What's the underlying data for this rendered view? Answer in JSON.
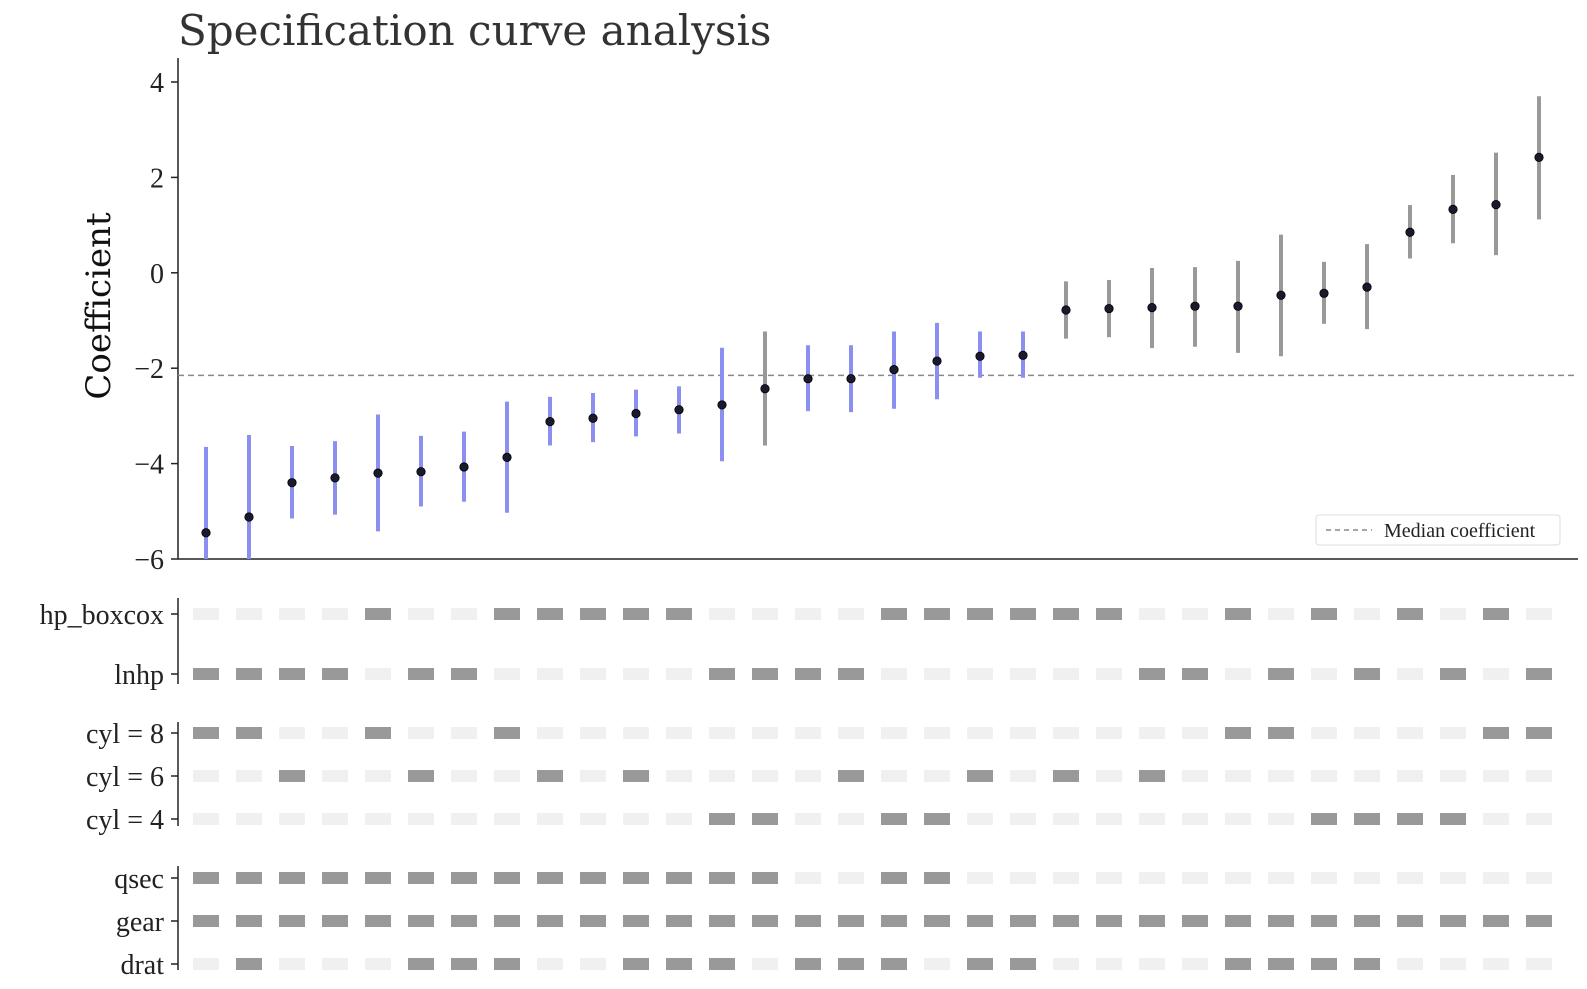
{
  "chart_data": {
    "type": "scatter",
    "title": "Specification curve analysis",
    "ylabel": "Coefficient",
    "xlabel": "",
    "ylim": [
      -6,
      4.5
    ],
    "yticks": [
      4,
      2,
      0,
      -2,
      -4,
      -6
    ],
    "ytick_labels": [
      "4",
      "2",
      "0",
      "−2",
      "−4",
      "−6"
    ],
    "median_coefficient": -2.15,
    "legend": {
      "label": "Median coefficient",
      "placement": "lower-right"
    },
    "colors": {
      "significant": "#8b8ff0",
      "not_significant": "#999999",
      "point": "#1a1a2e",
      "median_line": "#888888",
      "cell_on": "#999999",
      "cell_off": "#f0f0f0",
      "axis": "#222222"
    },
    "specifications": [
      {
        "coef": -5.45,
        "low": -6.5,
        "high": -3.65,
        "significant": true
      },
      {
        "coef": -5.12,
        "low": -6.5,
        "high": -3.4,
        "significant": true
      },
      {
        "coef": -4.4,
        "low": -5.15,
        "high": -3.63,
        "significant": true
      },
      {
        "coef": -4.3,
        "low": -5.07,
        "high": -3.53,
        "significant": true
      },
      {
        "coef": -4.2,
        "low": -5.42,
        "high": -2.97,
        "significant": true
      },
      {
        "coef": -4.17,
        "low": -4.9,
        "high": -3.42,
        "significant": true
      },
      {
        "coef": -4.07,
        "low": -4.8,
        "high": -3.33,
        "significant": true
      },
      {
        "coef": -3.87,
        "low": -5.03,
        "high": -2.7,
        "significant": true
      },
      {
        "coef": -3.12,
        "low": -3.62,
        "high": -2.6,
        "significant": true
      },
      {
        "coef": -3.05,
        "low": -3.55,
        "high": -2.52,
        "significant": true
      },
      {
        "coef": -2.95,
        "low": -3.43,
        "high": -2.45,
        "significant": true
      },
      {
        "coef": -2.87,
        "low": -3.37,
        "high": -2.38,
        "significant": true
      },
      {
        "coef": -2.77,
        "low": -3.95,
        "high": -1.57,
        "significant": true
      },
      {
        "coef": -2.43,
        "low": -3.62,
        "high": -1.23,
        "significant": false
      },
      {
        "coef": -2.22,
        "low": -2.9,
        "high": -1.52,
        "significant": true
      },
      {
        "coef": -2.22,
        "low": -2.92,
        "high": -1.52,
        "significant": true
      },
      {
        "coef": -2.03,
        "low": -2.85,
        "high": -1.23,
        "significant": true
      },
      {
        "coef": -1.85,
        "low": -2.65,
        "high": -1.05,
        "significant": true
      },
      {
        "coef": -1.75,
        "low": -2.2,
        "high": -1.23,
        "significant": true
      },
      {
        "coef": -1.73,
        "low": -2.2,
        "high": -1.23,
        "significant": true
      },
      {
        "coef": -0.78,
        "low": -1.38,
        "high": -0.18,
        "significant": false
      },
      {
        "coef": -0.75,
        "low": -1.35,
        "high": -0.15,
        "significant": false
      },
      {
        "coef": -0.73,
        "low": -1.58,
        "high": 0.1,
        "significant": false
      },
      {
        "coef": -0.7,
        "low": -1.55,
        "high": 0.12,
        "significant": false
      },
      {
        "coef": -0.7,
        "low": -1.68,
        "high": 0.25,
        "significant": false
      },
      {
        "coef": -0.47,
        "low": -1.75,
        "high": 0.8,
        "significant": false
      },
      {
        "coef": -0.43,
        "low": -1.07,
        "high": 0.23,
        "significant": false
      },
      {
        "coef": -0.3,
        "low": -1.18,
        "high": 0.6,
        "significant": false
      },
      {
        "coef": 0.85,
        "low": 0.3,
        "high": 1.42,
        "significant": false
      },
      {
        "coef": 1.33,
        "low": 0.62,
        "high": 2.05,
        "significant": false
      },
      {
        "coef": 1.43,
        "low": 0.37,
        "high": 2.52,
        "significant": false
      },
      {
        "coef": 2.42,
        "low": 1.12,
        "high": 3.7,
        "significant": false
      }
    ],
    "groups": [
      {
        "rows": [
          {
            "label": "hp_boxcox",
            "on": [
              0,
              0,
              0,
              0,
              1,
              0,
              0,
              1,
              1,
              1,
              1,
              1,
              0,
              0,
              0,
              0,
              1,
              1,
              1,
              1,
              1,
              1,
              0,
              0,
              1,
              0,
              1,
              0,
              1,
              0,
              1,
              0
            ]
          },
          {
            "label": "lnhp",
            "on": [
              1,
              1,
              1,
              1,
              0,
              1,
              1,
              0,
              0,
              0,
              0,
              0,
              1,
              1,
              1,
              1,
              0,
              0,
              0,
              0,
              0,
              0,
              1,
              1,
              0,
              1,
              0,
              1,
              0,
              1,
              0,
              1
            ]
          }
        ]
      },
      {
        "rows": [
          {
            "label": "cyl = 8",
            "on": [
              1,
              1,
              0,
              0,
              1,
              0,
              0,
              1,
              0,
              0,
              0,
              0,
              0,
              0,
              0,
              0,
              0,
              0,
              0,
              0,
              0,
              0,
              0,
              0,
              1,
              1,
              0,
              0,
              0,
              0,
              1,
              1
            ]
          },
          {
            "label": "cyl = 6",
            "on": [
              0,
              0,
              1,
              0,
              0,
              1,
              0,
              0,
              1,
              0,
              1,
              0,
              0,
              0,
              0,
              1,
              0,
              0,
              1,
              0,
              1,
              0,
              1,
              0,
              0,
              0,
              0,
              0,
              0,
              0,
              0,
              0
            ]
          },
          {
            "label": "cyl = 4",
            "on": [
              0,
              0,
              0,
              0,
              0,
              0,
              0,
              0,
              0,
              0,
              0,
              0,
              1,
              1,
              0,
              0,
              1,
              1,
              0,
              0,
              0,
              0,
              0,
              0,
              0,
              0,
              1,
              1,
              1,
              1,
              0,
              0
            ]
          }
        ]
      },
      {
        "rows": [
          {
            "label": "qsec",
            "on": [
              1,
              1,
              1,
              1,
              1,
              1,
              1,
              1,
              1,
              1,
              1,
              1,
              1,
              1,
              0,
              0,
              1,
              1,
              0,
              0,
              0,
              0,
              0,
              0,
              0,
              0,
              0,
              0,
              0,
              0,
              0,
              0
            ]
          },
          {
            "label": "gear",
            "on": [
              1,
              1,
              1,
              1,
              1,
              1,
              1,
              1,
              1,
              1,
              1,
              1,
              1,
              1,
              1,
              1,
              1,
              1,
              1,
              1,
              1,
              1,
              1,
              1,
              1,
              1,
              1,
              1,
              1,
              1,
              1,
              1
            ]
          },
          {
            "label": "drat",
            "on": [
              0,
              1,
              0,
              0,
              0,
              1,
              1,
              1,
              0,
              0,
              1,
              1,
              1,
              0,
              1,
              1,
              1,
              0,
              1,
              1,
              0,
              0,
              0,
              0,
              1,
              1,
              1,
              1,
              0,
              0,
              0,
              0
            ]
          }
        ]
      }
    ]
  }
}
